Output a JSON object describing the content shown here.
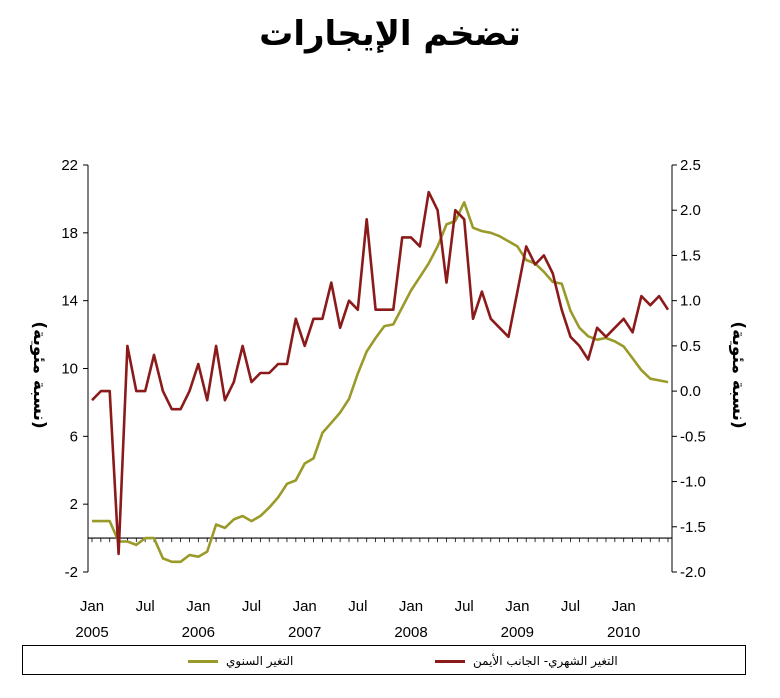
{
  "title": "تضخم الإيجارات",
  "legend": {
    "yoy_label": "التغير السنوي",
    "mom_label": "التغير الشهري- الجانب الأيمن"
  },
  "chart_data": {
    "type": "line",
    "title": "تضخم الإيجارات",
    "x_ticks": [
      {
        "month": "Jan",
        "year": "2005"
      },
      {
        "month": "Jul",
        "year": ""
      },
      {
        "month": "Jan",
        "year": "2006"
      },
      {
        "month": "Jul",
        "year": ""
      },
      {
        "month": "Jan",
        "year": "2007"
      },
      {
        "month": "Jul",
        "year": ""
      },
      {
        "month": "Jan",
        "year": "2008"
      },
      {
        "month": "Jul",
        "year": ""
      },
      {
        "month": "Jan",
        "year": "2009"
      },
      {
        "month": "Jul",
        "year": ""
      },
      {
        "month": "Jan",
        "year": "2010"
      }
    ],
    "y_left": {
      "label": "(نسبة مئوية)",
      "min": -2,
      "max": 22,
      "ticks": [
        "-2",
        "2",
        "6",
        "10",
        "14",
        "18",
        "22"
      ]
    },
    "y_right": {
      "label": "(نسبة مئوية)",
      "min": -2.0,
      "max": 2.5,
      "ticks": [
        "-2.0",
        "-1.5",
        "-1.0",
        "-0.5",
        "0.0",
        "0.5",
        "1.0",
        "1.5",
        "2.0",
        "2.5"
      ]
    },
    "x_start": "2005-01",
    "series": [
      {
        "name": "التغير السنوي",
        "axis": "left",
        "color": "#9a9a2a",
        "values": [
          1.0,
          1.0,
          1.0,
          -0.2,
          -0.2,
          -0.4,
          0.0,
          0.0,
          -1.2,
          -1.4,
          -1.4,
          -1.0,
          -1.1,
          -0.8,
          0.8,
          0.6,
          1.1,
          1.3,
          1.0,
          1.3,
          1.8,
          2.4,
          3.2,
          3.4,
          4.4,
          4.7,
          6.2,
          6.8,
          7.4,
          8.2,
          9.7,
          11.0,
          11.8,
          12.5,
          12.6,
          13.6,
          14.6,
          15.4,
          16.2,
          17.2,
          18.5,
          18.7,
          19.8,
          18.3,
          18.1,
          18.0,
          17.8,
          17.5,
          17.2,
          16.4,
          16.2,
          15.7,
          15.1,
          15.0,
          13.4,
          12.4,
          11.9,
          11.7,
          11.8,
          11.6,
          11.3,
          10.6,
          9.9,
          9.4,
          9.3,
          9.2
        ]
      },
      {
        "name": "التغير الشهري- الجانب الأيمن",
        "axis": "right",
        "color": "#8b1a1a",
        "values": [
          -0.1,
          -0.0,
          -0.0,
          -1.8,
          0.5,
          0.0,
          0.0,
          0.4,
          0.0,
          -0.2,
          -0.2,
          0.0,
          0.3,
          -0.1,
          0.5,
          -0.1,
          0.1,
          0.5,
          0.1,
          0.2,
          0.2,
          0.3,
          0.3,
          0.8,
          0.5,
          0.8,
          0.8,
          1.2,
          0.7,
          1.0,
          0.9,
          1.9,
          0.9,
          0.9,
          0.9,
          1.7,
          1.7,
          1.6,
          2.2,
          2.0,
          1.2,
          2.0,
          1.9,
          0.8,
          1.1,
          0.8,
          0.7,
          0.6,
          1.1,
          1.6,
          1.4,
          1.5,
          1.3,
          0.9,
          0.6,
          0.5,
          0.35,
          0.7,
          0.6,
          0.7,
          0.8,
          0.65,
          1.05,
          0.95,
          1.05,
          0.9
        ]
      }
    ],
    "grid": false,
    "legend_position": "bottom"
  }
}
